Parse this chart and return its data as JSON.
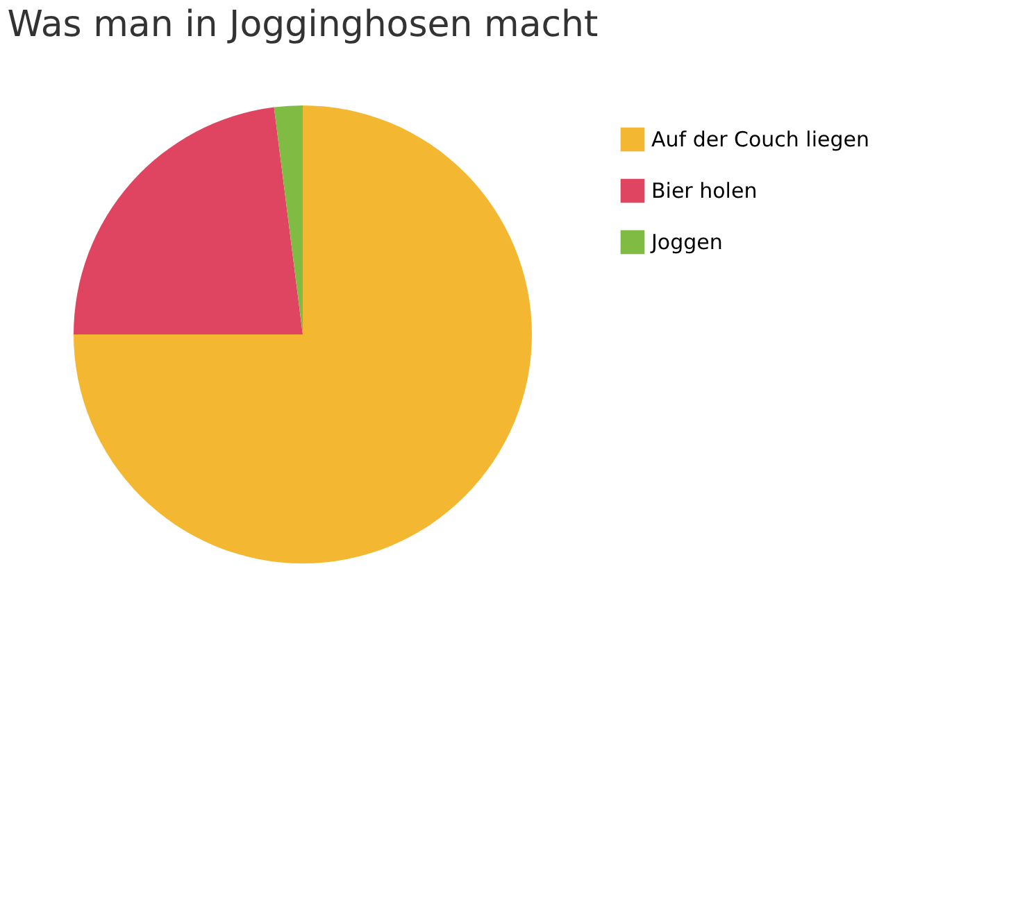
{
  "chart_data": {
    "type": "pie",
    "title": "Was man in Jogginghosen macht",
    "categories": [
      "Auf der Couch liegen",
      "Bier holen",
      "Joggen"
    ],
    "values": [
      75,
      23,
      2
    ],
    "colors": [
      "#f4b731",
      "#df4560",
      "#80bb44"
    ],
    "legend": "right"
  }
}
